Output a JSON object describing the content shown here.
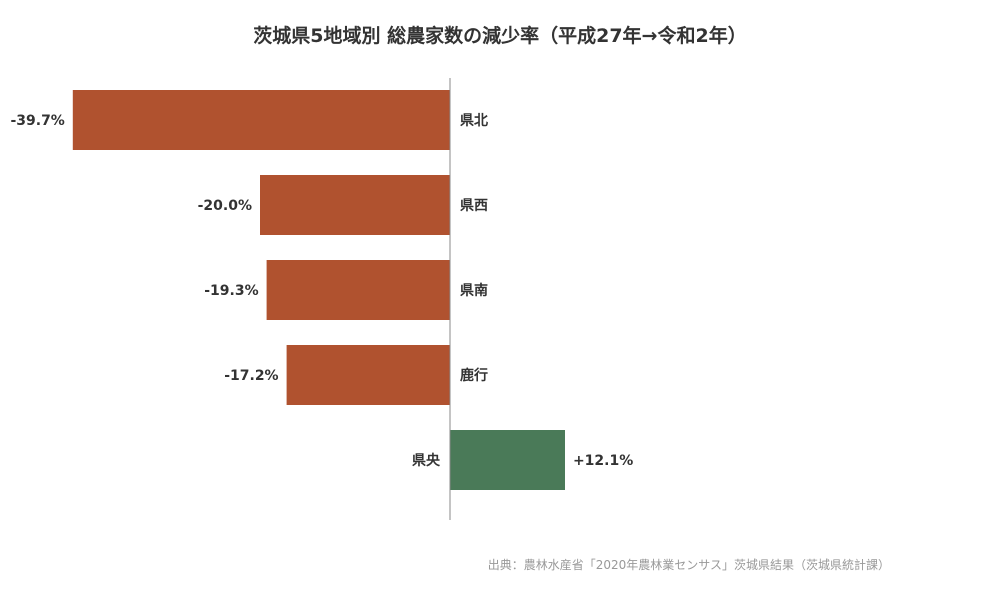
{
  "chart_data": {
    "type": "bar",
    "orientation": "horizontal",
    "title": "茨城県5地域別 総農家数の減少率（平成27年→令和2年）",
    "categories": [
      "県北",
      "県西",
      "県南",
      "鹿行",
      "県央"
    ],
    "values": [
      -39.7,
      -20.0,
      -19.3,
      -17.2,
      12.1
    ],
    "value_labels": [
      "-39.7%",
      "-20.0%",
      "-19.3%",
      "-17.2%",
      "+12.1%"
    ],
    "colors": {
      "negative": "#b0522f",
      "positive": "#4a7a58"
    },
    "xlim": [
      -40,
      30
    ],
    "grid": false,
    "legend": "none"
  },
  "source": "出典：農林水産省「2020年農林業センサス」茨城県結果（茨城県統計課）"
}
